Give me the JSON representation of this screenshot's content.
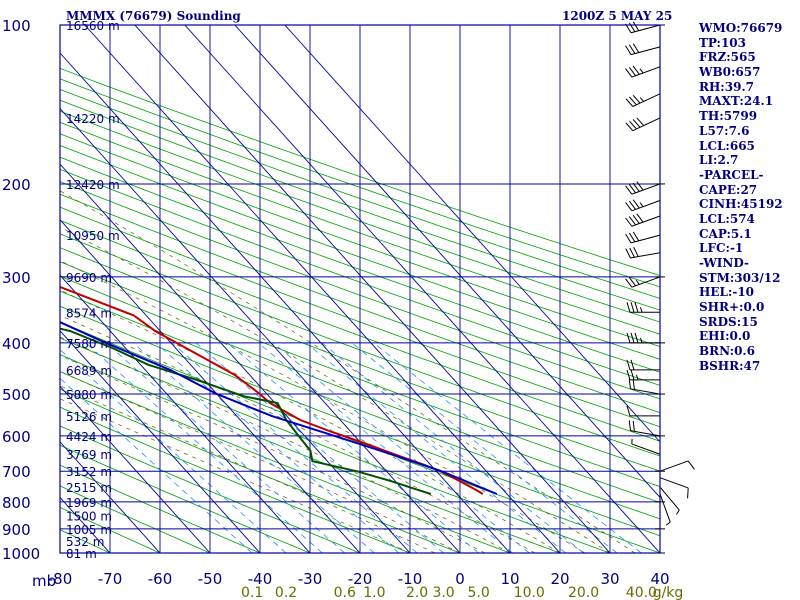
{
  "header": {
    "station_title": "MMMX (76679) Sounding",
    "time_title": "1200Z  5 MAY 25"
  },
  "colors": {
    "frame": "#0000a0",
    "isotherm": "#0000a0",
    "dry_adiabat": "#00a000",
    "moist_adiabat": "#606000",
    "mixing_ratio": "#1e90ff",
    "temperature": "#c00000",
    "dewpoint": "#005000",
    "parcel": "#0000c0",
    "wind": "#000000",
    "labels": "#000080",
    "mixing_labels": "#6b6b00"
  },
  "params": [
    "WMO:76679",
    "TP:103",
    "FRZ:565",
    "WB0:657",
    "RH:39.7",
    "MAXT:24.1",
    "TH:5799",
    "L57:7.6",
    "LCL:665",
    "LI:2.7",
    "-PARCEL-",
    "CAPE:27",
    "CINH:45192",
    "LCL:574",
    "CAP:5.1",
    "LFC:-1",
    "-WIND-",
    "STM:303/12",
    "HEL:-10",
    "SHR+:0.0",
    "SRDS:15",
    "EHI:0.0",
    "BRN:0.6",
    "BSHR:47"
  ],
  "chart_data": {
    "type": "skewt",
    "y_axis": {
      "unit_label": "mb",
      "range": [
        100,
        1000
      ],
      "scale": "log",
      "pressure_ticks": [
        100,
        200,
        300,
        400,
        500,
        600,
        700,
        800,
        900,
        1000
      ]
    },
    "x_axis": {
      "temperature_range": [
        -80,
        40
      ],
      "temperature_ticks": [
        -80,
        -70,
        -60,
        -50,
        -40,
        -30,
        -20,
        -10,
        0,
        10,
        20,
        30,
        40
      ],
      "temperature_tick_labels": [
        "-80",
        "-70",
        "-60",
        "-50",
        "-40",
        "-30",
        "-20",
        "-10",
        "0",
        "10",
        "20",
        "30",
        "40"
      ]
    },
    "height_labels": [
      {
        "p": 100,
        "text": "16560 m"
      },
      {
        "p": 150,
        "text": "14220 m"
      },
      {
        "p": 200,
        "text": "12420 m"
      },
      {
        "p": 250,
        "text": "10950 m"
      },
      {
        "p": 300,
        "text": "9690 m"
      },
      {
        "p": 350,
        "text": "8574 m"
      },
      {
        "p": 400,
        "text": "7580 m"
      },
      {
        "p": 450,
        "text": "6689 m"
      },
      {
        "p": 500,
        "text": "5880 m"
      },
      {
        "p": 550,
        "text": "5126 m"
      },
      {
        "p": 600,
        "text": "4424 m"
      },
      {
        "p": 650,
        "text": "3769 m"
      },
      {
        "p": 700,
        "text": "3152 m"
      },
      {
        "p": 750,
        "text": "2515 m"
      },
      {
        "p": 800,
        "text": "1969 m"
      },
      {
        "p": 850,
        "text": "1500 m"
      },
      {
        "p": 900,
        "text": "1005 m"
      },
      {
        "p": 950,
        "text": "532 m"
      },
      {
        "p": 1000,
        "text": "81 m"
      }
    ],
    "mixing_ratio_labels": [
      {
        "w": 0.1,
        "text": "0.1"
      },
      {
        "w": 0.2,
        "text": "0.2"
      },
      {
        "w": 0.6,
        "text": "0.6"
      },
      {
        "w": 1.0,
        "text": "1.0"
      },
      {
        "w": 2.0,
        "text": "2.0"
      },
      {
        "w": 3.0,
        "text": "3.0"
      },
      {
        "w": 5.0,
        "text": "5.0"
      },
      {
        "w": 10.0,
        "text": "10.0"
      },
      {
        "w": 20.0,
        "text": "20.0"
      },
      {
        "w": 40.0,
        "text": "40.0"
      }
    ],
    "mixing_ratio_unit": "g/kg",
    "mixing_ratio_lines": [
      0.1,
      0.2,
      0.4,
      0.6,
      1.0,
      1.5,
      2.0,
      3.0,
      5.0,
      8.0,
      10.0,
      16.0,
      20.0,
      30.0,
      40.0
    ],
    "dry_adiabat_start_temps": [
      -80,
      -70,
      -60,
      -50,
      -40,
      -30,
      -20,
      -10,
      0,
      10,
      20,
      30,
      40,
      50,
      60,
      70,
      80,
      90,
      100,
      110,
      120,
      130,
      140,
      150,
      160,
      170,
      180,
      190,
      200,
      210,
      220,
      230,
      240
    ],
    "moist_adiabat_start_temps": [
      -10,
      -5,
      0,
      5,
      10,
      15,
      20,
      25,
      30,
      35
    ],
    "series": [
      {
        "name": "temperature",
        "points": [
          [
            773,
            15.2
          ],
          [
            760,
            14.6
          ],
          [
            730,
            12.8
          ],
          [
            700,
            10.8
          ],
          [
            680,
            8.6
          ],
          [
            650,
            4.6
          ],
          [
            620,
            0.8
          ],
          [
            590,
            -3.8
          ],
          [
            560,
            -8.0
          ],
          [
            520,
            -11.0
          ],
          [
            500,
            -11.4
          ],
          [
            460,
            -13.0
          ],
          [
            420,
            -16.8
          ],
          [
            380,
            -21.0
          ],
          [
            355,
            -22.5
          ],
          [
            310,
            -33.0
          ],
          [
            280,
            -41.0
          ],
          [
            262,
            -43.0
          ],
          [
            245,
            -47.0
          ],
          [
            228,
            -51.0
          ],
          [
            200,
            -58.5
          ],
          [
            175,
            -64.0
          ],
          [
            150,
            -71.0
          ],
          [
            130,
            -75.0
          ],
          [
            115,
            -77.5
          ],
          [
            100,
            -80.0
          ]
        ]
      },
      {
        "name": "dewpoint",
        "points": [
          [
            773,
            4.8
          ],
          [
            760,
            3.0
          ],
          [
            730,
            -1.0
          ],
          [
            700,
            -6.0
          ],
          [
            670,
            -13.0
          ],
          [
            640,
            -11.5
          ],
          [
            600,
            -11.2
          ],
          [
            560,
            -10.8
          ],
          [
            520,
            -9.5
          ],
          [
            505,
            -15.0
          ],
          [
            470,
            -21.5
          ],
          [
            440,
            -28.5
          ],
          [
            410,
            -32.5
          ],
          [
            380,
            -38.0
          ],
          [
            360,
            -46.0
          ],
          [
            330,
            -46.5
          ],
          [
            300,
            -47.0
          ],
          [
            270,
            -48.0
          ],
          [
            250,
            -60.0
          ],
          [
            230,
            -69.0
          ],
          [
            200,
            -72.5
          ],
          [
            170,
            -76.0
          ],
          [
            145,
            -79.0
          ],
          [
            130,
            -80.0
          ]
        ]
      },
      {
        "name": "parcel",
        "points": [
          [
            773,
            18.0
          ],
          [
            700,
            11.0
          ],
          [
            650,
            4.0
          ],
          [
            600,
            -4.0
          ],
          [
            550,
            -13.0
          ],
          [
            500,
            -20.0
          ],
          [
            450,
            -25.0
          ],
          [
            400,
            -33.0
          ],
          [
            350,
            -41.0
          ],
          [
            300,
            -47.0
          ],
          [
            250,
            -56.0
          ],
          [
            200,
            -65.0
          ],
          [
            170,
            -72.0
          ],
          [
            150,
            -80.0
          ]
        ]
      }
    ],
    "wind_barbs": [
      {
        "p": 773,
        "dir": 160,
        "spd": 5
      },
      {
        "p": 750,
        "dir": 140,
        "spd": 5
      },
      {
        "p": 720,
        "dir": 110,
        "spd": 10
      },
      {
        "p": 700,
        "dir": 70,
        "spd": 10
      },
      {
        "p": 650,
        "dir": 290,
        "spd": 5
      },
      {
        "p": 600,
        "dir": 280,
        "spd": 20
      },
      {
        "p": 550,
        "dir": 270,
        "spd": 10
      },
      {
        "p": 500,
        "dir": 280,
        "spd": 20
      },
      {
        "p": 470,
        "dir": 270,
        "spd": 25
      },
      {
        "p": 450,
        "dir": 270,
        "spd": 20
      },
      {
        "p": 400,
        "dir": 270,
        "spd": 35
      },
      {
        "p": 350,
        "dir": 270,
        "spd": 35
      },
      {
        "p": 300,
        "dir": 250,
        "spd": 25
      },
      {
        "p": 270,
        "dir": 260,
        "spd": 30
      },
      {
        "p": 250,
        "dir": 255,
        "spd": 30
      },
      {
        "p": 230,
        "dir": 250,
        "spd": 40
      },
      {
        "p": 215,
        "dir": 250,
        "spd": 35
      },
      {
        "p": 200,
        "dir": 250,
        "spd": 40
      },
      {
        "p": 150,
        "dir": 245,
        "spd": 40
      },
      {
        "p": 135,
        "dir": 245,
        "spd": 35
      },
      {
        "p": 120,
        "dir": 250,
        "spd": 35
      },
      {
        "p": 110,
        "dir": 255,
        "spd": 30
      },
      {
        "p": 100,
        "dir": 255,
        "spd": 30
      }
    ]
  }
}
